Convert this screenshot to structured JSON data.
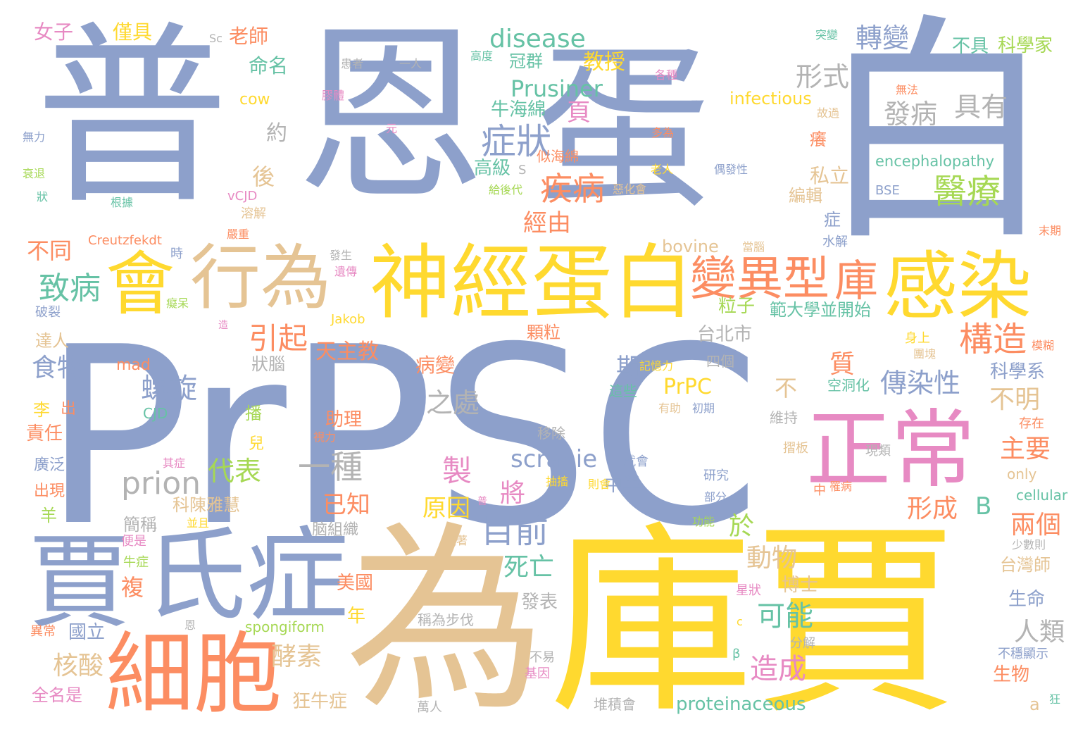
{
  "palette": {
    "blue": "#8da0cb",
    "gold": "#ffd92f",
    "tan": "#e5c494",
    "orange": "#fc8d62",
    "pink": "#e78ac3",
    "green": "#a6d854",
    "teal": "#66c2a5",
    "gray": "#b3b3b3"
  },
  "words": [
    {
      "text": "普",
      "color": "#8da0cb"
    },
    {
      "text": "恩",
      "color": "#8da0cb"
    },
    {
      "text": "蛋",
      "color": "#8da0cb"
    },
    {
      "text": "白",
      "color": "#8da0cb"
    },
    {
      "text": "PrPSC",
      "color": "#8da0cb"
    },
    {
      "text": "為",
      "color": "#e5c494"
    },
    {
      "text": "庫賈",
      "color": "#ffd92f"
    },
    {
      "text": "賈",
      "color": "#8da0cb"
    },
    {
      "text": "氏症",
      "color": "#8da0cb"
    },
    {
      "text": "細胞",
      "color": "#fc8d62"
    },
    {
      "text": "神經蛋白",
      "color": "#ffd92f"
    },
    {
      "text": "行為",
      "color": "#e5c494"
    },
    {
      "text": "會",
      "color": "#ffd92f"
    },
    {
      "text": "感染",
      "color": "#ffd92f"
    },
    {
      "text": "正常",
      "color": "#e78ac3"
    },
    {
      "text": "變異型",
      "color": "#fc8d62"
    },
    {
      "text": "庫",
      "color": "#fc8d62"
    },
    {
      "text": "致病",
      "color": "#66c2a5"
    },
    {
      "text": "prion",
      "color": "#b3b3b3"
    },
    {
      "text": "症狀",
      "color": "#8da0cb"
    },
    {
      "text": "疾病",
      "color": "#fc8d62"
    },
    {
      "text": "醫療",
      "color": "#a6d854"
    },
    {
      "text": "disease",
      "color": "#66c2a5"
    },
    {
      "text": "Prusiner",
      "color": "#66c2a5"
    },
    {
      "text": "轉變",
      "color": "#8da0cb"
    },
    {
      "text": "形式",
      "color": "#b3b3b3"
    },
    {
      "text": "具有",
      "color": "#b3b3b3"
    },
    {
      "text": "發病",
      "color": "#b3b3b3"
    },
    {
      "text": "構造",
      "color": "#fc8d62"
    },
    {
      "text": "引起",
      "color": "#fc8d62"
    },
    {
      "text": "傳染性",
      "color": "#8da0cb"
    },
    {
      "text": "一種",
      "color": "#b3b3b3"
    },
    {
      "text": "目前",
      "color": "#8da0cb"
    },
    {
      "text": "代表",
      "color": "#a6d854"
    },
    {
      "text": "螺旋",
      "color": "#8da0cb"
    },
    {
      "text": "食物",
      "color": "#8da0cb"
    },
    {
      "text": "scrapie",
      "color": "#8da0cb"
    },
    {
      "text": "製",
      "color": "#e78ac3"
    },
    {
      "text": "可能",
      "color": "#66c2a5"
    },
    {
      "text": "造成",
      "color": "#e78ac3"
    },
    {
      "text": "核酸",
      "color": "#e5c494"
    },
    {
      "text": "酵素",
      "color": "#e5c494"
    },
    {
      "text": "死亡",
      "color": "#66c2a5"
    },
    {
      "text": "之處",
      "color": "#b3b3b3"
    },
    {
      "text": "已知",
      "color": "#fc8d62"
    },
    {
      "text": "原因",
      "color": "#ffd92f"
    },
    {
      "text": "將",
      "color": "#e78ac3"
    },
    {
      "text": "形成",
      "color": "#fc8d62"
    },
    {
      "text": "兩個",
      "color": "#fc8d62"
    },
    {
      "text": "主要",
      "color": "#fc8d62"
    },
    {
      "text": "不明",
      "color": "#e5c494"
    },
    {
      "text": "人類",
      "color": "#b3b3b3"
    },
    {
      "text": "PrPC",
      "color": "#ffd92f"
    },
    {
      "text": "期",
      "color": "#8da0cb"
    },
    {
      "text": "質",
      "color": "#fc8d62"
    },
    {
      "text": "不",
      "color": "#e5c494"
    },
    {
      "text": "於",
      "color": "#a6d854"
    },
    {
      "text": "動物",
      "color": "#e5c494"
    },
    {
      "text": "B",
      "color": "#66c2a5"
    },
    {
      "text": "複",
      "color": "#fc8d62"
    },
    {
      "text": "經由",
      "color": "#fc8d62"
    },
    {
      "text": "頁",
      "color": "#e78ac3"
    },
    {
      "text": "約",
      "color": "#b3b3b3"
    },
    {
      "text": "後",
      "color": "#e5c494"
    },
    {
      "text": "牛海綿",
      "color": "#66c2a5"
    },
    {
      "text": "高級",
      "color": "#66c2a5"
    },
    {
      "text": "教授",
      "color": "#ffd92f"
    },
    {
      "text": "命名",
      "color": "#66c2a5"
    },
    {
      "text": "老師",
      "color": "#fc8d62"
    },
    {
      "text": "僅具",
      "color": "#ffd92f"
    },
    {
      "text": "女子",
      "color": "#e78ac3"
    },
    {
      "text": "不具",
      "color": "#66c2a5"
    },
    {
      "text": "科學家",
      "color": "#a6d854"
    },
    {
      "text": "infectious",
      "color": "#ffd92f"
    },
    {
      "text": "encephalopathy",
      "color": "#66c2a5"
    },
    {
      "text": "BSE",
      "color": "#8da0cb"
    },
    {
      "text": "cow",
      "color": "#ffd92f"
    },
    {
      "text": "bovine",
      "color": "#e5c494"
    },
    {
      "text": "不同",
      "color": "#fc8d62"
    },
    {
      "text": "天主教",
      "color": "#fc8d62"
    },
    {
      "text": "粒子",
      "color": "#a6d854"
    },
    {
      "text": "範大學並開始",
      "color": "#66c2a5"
    },
    {
      "text": "台北市",
      "color": "#b3b3b3"
    },
    {
      "text": "病變",
      "color": "#fc8d62"
    },
    {
      "text": "台灣師",
      "color": "#e5c494"
    },
    {
      "text": "生命",
      "color": "#8da0cb"
    },
    {
      "text": "生物",
      "color": "#fc8d62"
    },
    {
      "text": "科學系",
      "color": "#8da0cb"
    },
    {
      "text": "私立",
      "color": "#e5c494"
    },
    {
      "text": "編輯",
      "color": "#e5c494"
    },
    {
      "text": "博士",
      "color": "#e5c494"
    },
    {
      "text": "美國",
      "color": "#fc8d62"
    },
    {
      "text": "年",
      "color": "#ffd92f"
    },
    {
      "text": "國立",
      "color": "#8da0cb"
    },
    {
      "text": "發表",
      "color": "#b3b3b3"
    },
    {
      "text": "中學",
      "color": "#8da0cb"
    },
    {
      "text": "助理",
      "color": "#fc8d62"
    },
    {
      "text": "科陳雅慧",
      "color": "#e5c494"
    },
    {
      "text": "簡稱",
      "color": "#b3b3b3"
    },
    {
      "text": "狂牛症",
      "color": "#e5c494"
    },
    {
      "text": "proteinaceous",
      "color": "#66c2a5"
    },
    {
      "text": "spongiform",
      "color": "#a6d854"
    },
    {
      "text": "Creutzfekdt",
      "color": "#fc8d62"
    },
    {
      "text": "mad",
      "color": "#fc8d62"
    },
    {
      "text": "CJD",
      "color": "#66c2a5"
    },
    {
      "text": "Jakob",
      "color": "#ffd92f"
    },
    {
      "text": "vCJD",
      "color": "#e78ac3"
    },
    {
      "text": "cellular",
      "color": "#66c2a5"
    },
    {
      "text": "only",
      "color": "#e5c494"
    },
    {
      "text": "a",
      "color": "#e5c494"
    },
    {
      "text": "S",
      "color": "#b3b3b3"
    },
    {
      "text": "Sc",
      "color": "#b3b3b3"
    },
    {
      "text": "c",
      "color": "#ffd92f"
    },
    {
      "text": "β",
      "color": "#66c2a5"
    },
    {
      "text": "患者",
      "color": "#b3b3b3"
    },
    {
      "text": "一人",
      "color": "#b3b3b3"
    },
    {
      "text": "高度",
      "color": "#66c2a5"
    },
    {
      "text": "冠群",
      "color": "#66c2a5"
    },
    {
      "text": "突變",
      "color": "#66c2a5"
    },
    {
      "text": "各種",
      "color": "#e78ac3"
    },
    {
      "text": "無法",
      "color": "#fc8d62"
    },
    {
      "text": "故過",
      "color": "#e5c494"
    },
    {
      "text": "膠體",
      "color": "#e78ac3"
    },
    {
      "text": "元",
      "color": "#e78ac3"
    },
    {
      "text": "多為",
      "color": "#fc8d62"
    },
    {
      "text": "無力",
      "color": "#8da0cb"
    },
    {
      "text": "衰退",
      "color": "#a6d854"
    },
    {
      "text": "狀",
      "color": "#66c2a5"
    },
    {
      "text": "根據",
      "color": "#66c2a5"
    },
    {
      "text": "溶解",
      "color": "#e5c494"
    },
    {
      "text": "似海綿",
      "color": "#fc8d62"
    },
    {
      "text": "給後代",
      "color": "#a6d854"
    },
    {
      "text": "惡化會",
      "color": "#e5c494"
    },
    {
      "text": "老人",
      "color": "#ffd92f"
    },
    {
      "text": "偶發性",
      "color": "#8da0cb"
    },
    {
      "text": "癢",
      "color": "#fc8d62"
    },
    {
      "text": "症",
      "color": "#8da0cb"
    },
    {
      "text": "水解",
      "color": "#8da0cb"
    },
    {
      "text": "末期",
      "color": "#fc8d62"
    },
    {
      "text": "嚴重",
      "color": "#fc8d62"
    },
    {
      "text": "時",
      "color": "#8da0cb"
    },
    {
      "text": "發生",
      "color": "#b3b3b3"
    },
    {
      "text": "當腦",
      "color": "#e5c494"
    },
    {
      "text": "遺傳",
      "color": "#e78ac3"
    },
    {
      "text": "癡呆",
      "color": "#a6d854"
    },
    {
      "text": "破裂",
      "color": "#8da0cb"
    },
    {
      "text": "造",
      "color": "#e78ac3"
    },
    {
      "text": "達人",
      "color": "#e5c494"
    },
    {
      "text": "顆粒",
      "color": "#fc8d62"
    },
    {
      "text": "狀腦",
      "color": "#b3b3b3"
    },
    {
      "text": "記憶力",
      "color": "#ffd92f"
    },
    {
      "text": "四個",
      "color": "#b3b3b3"
    },
    {
      "text": "這些",
      "color": "#66c2a5"
    },
    {
      "text": "空洞化",
      "color": "#66c2a5"
    },
    {
      "text": "身上",
      "color": "#ffd92f"
    },
    {
      "text": "模糊",
      "color": "#fc8d62"
    },
    {
      "text": "團塊",
      "color": "#e5c494"
    },
    {
      "text": "有助",
      "color": "#e5c494"
    },
    {
      "text": "初期",
      "color": "#8da0cb"
    },
    {
      "text": "存在",
      "color": "#fc8d62"
    },
    {
      "text": "維持",
      "color": "#b3b3b3"
    },
    {
      "text": "移除",
      "color": "#b3b3b3"
    },
    {
      "text": "摺板",
      "color": "#e5c494"
    },
    {
      "text": "現類",
      "color": "#b3b3b3"
    },
    {
      "text": "視力",
      "color": "#fc8d62"
    },
    {
      "text": "其症",
      "color": "#e78ac3"
    },
    {
      "text": "就會",
      "color": "#8da0cb"
    },
    {
      "text": "研究",
      "color": "#8da0cb"
    },
    {
      "text": "抽搐",
      "color": "#ffd92f"
    },
    {
      "text": "則會",
      "color": "#ffd92f"
    },
    {
      "text": "中",
      "color": "#fc8d62"
    },
    {
      "text": "罹病",
      "color": "#fc8d62"
    },
    {
      "text": "部分",
      "color": "#8da0cb"
    },
    {
      "text": "功能",
      "color": "#a6d854"
    },
    {
      "text": "並且",
      "color": "#ffd92f"
    },
    {
      "text": "普",
      "color": "#e78ac3"
    },
    {
      "text": "脑組織",
      "color": "#b3b3b3"
    },
    {
      "text": "隨著",
      "color": "#e5c494"
    },
    {
      "text": "少數則",
      "color": "#b3b3b3"
    },
    {
      "text": "星狀",
      "color": "#e78ac3"
    },
    {
      "text": "稱為步伐",
      "color": "#b3b3b3"
    },
    {
      "text": "恩",
      "color": "#b3b3b3"
    },
    {
      "text": "分解",
      "color": "#b3b3b3"
    },
    {
      "text": "不易",
      "color": "#b3b3b3"
    },
    {
      "text": "基因",
      "color": "#e78ac3"
    },
    {
      "text": "不穩顯示",
      "color": "#8da0cb"
    },
    {
      "text": "萬人",
      "color": "#b3b3b3"
    },
    {
      "text": "堆積會",
      "color": "#b3b3b3"
    },
    {
      "text": "狂",
      "color": "#66c2a5"
    },
    {
      "text": "播",
      "color": "#a6d854"
    },
    {
      "text": "兒",
      "color": "#ffd92f"
    },
    {
      "text": "出",
      "color": "#fc8d62"
    },
    {
      "text": "李",
      "color": "#ffd92f"
    },
    {
      "text": "責任",
      "color": "#fc8d62"
    },
    {
      "text": "廣泛",
      "color": "#8da0cb"
    },
    {
      "text": "出現",
      "color": "#fc8d62"
    },
    {
      "text": "羊",
      "color": "#a6d854"
    },
    {
      "text": "便是",
      "color": "#e78ac3"
    },
    {
      "text": "牛症",
      "color": "#a6d854"
    },
    {
      "text": "異常",
      "color": "#fc8d62"
    },
    {
      "text": "全名是",
      "color": "#e78ac3"
    }
  ]
}
